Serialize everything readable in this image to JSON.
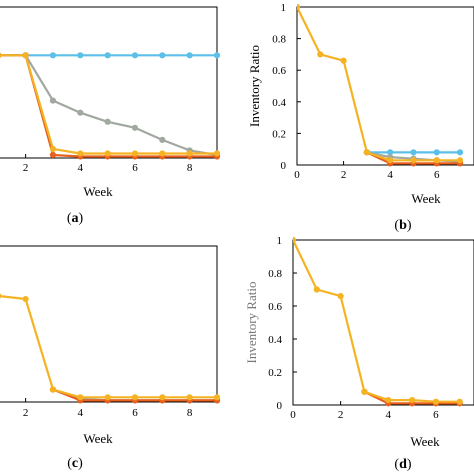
{
  "colors": {
    "blue": "#5bc0e8",
    "gray": "#a0a8a0",
    "yellow": "#f5b324",
    "orange": "#e8601c",
    "axis": "#000000"
  },
  "chart_data": [
    {
      "id": "a",
      "type": "line",
      "panel_label": {
        "open": "(",
        "letter": "a",
        "close": ")"
      },
      "xlabel": "Week",
      "ylabel": "",
      "xlim": [
        0,
        9
      ],
      "ylim": [
        0,
        1
      ],
      "xticks": [
        "2",
        "4",
        "6",
        "8"
      ],
      "xtick_values": [
        2,
        4,
        6,
        8
      ],
      "yticks": [],
      "series": [
        {
          "color": "blue",
          "x": [
            0,
            1,
            2,
            3,
            4,
            5,
            6,
            7,
            8,
            9
          ],
          "y": [
            0.68,
            0.68,
            0.68,
            0.68,
            0.68,
            0.68,
            0.68,
            0.68,
            0.68,
            0.68
          ]
        },
        {
          "color": "gray",
          "x": [
            0,
            1,
            2,
            3,
            4,
            5,
            6,
            7,
            8,
            9
          ],
          "y": [
            0.68,
            0.68,
            0.68,
            0.38,
            0.3,
            0.24,
            0.2,
            0.12,
            0.05,
            0.02
          ]
        },
        {
          "color": "orange",
          "x": [
            0,
            1,
            2,
            3,
            4,
            5,
            6,
            7,
            8,
            9
          ],
          "y": [
            0.68,
            0.68,
            0.68,
            0.02,
            0.01,
            0.01,
            0.01,
            0.01,
            0.01,
            0.01
          ]
        },
        {
          "color": "yellow",
          "x": [
            0,
            1,
            2,
            3,
            4,
            5,
            6,
            7,
            8,
            9
          ],
          "y": [
            0.68,
            0.68,
            0.68,
            0.06,
            0.03,
            0.03,
            0.03,
            0.03,
            0.03,
            0.03
          ]
        }
      ]
    },
    {
      "id": "b",
      "type": "line",
      "panel_label": {
        "open": "(",
        "letter": "b",
        "close": ")"
      },
      "xlabel": "Week",
      "ylabel": "Inventory Ratio",
      "xlim": [
        0,
        7
      ],
      "ylim": [
        0,
        1
      ],
      "xticks": [
        "0",
        "2",
        "4",
        "6"
      ],
      "xtick_values": [
        0,
        2,
        4,
        6
      ],
      "yticks": [
        "0",
        "0.2",
        "0.4",
        "0.6",
        "0.8",
        "1"
      ],
      "ytick_values": [
        0,
        0.2,
        0.4,
        0.6,
        0.8,
        1
      ],
      "series": [
        {
          "color": "blue",
          "x": [
            3,
            4,
            5,
            6,
            7
          ],
          "y": [
            0.08,
            0.08,
            0.08,
            0.08,
            0.08
          ]
        },
        {
          "color": "gray",
          "x": [
            3,
            4,
            5,
            6,
            7
          ],
          "y": [
            0.08,
            0.05,
            0.04,
            0.03,
            0.02
          ]
        },
        {
          "color": "orange",
          "x": [
            3,
            4,
            5,
            6,
            7
          ],
          "y": [
            0.08,
            0.01,
            0.01,
            0.01,
            0.01
          ]
        },
        {
          "color": "yellow",
          "x": [
            0,
            1,
            2,
            3,
            4,
            5,
            6,
            7
          ],
          "y": [
            1,
            0.7,
            0.66,
            0.08,
            0.03,
            0.03,
            0.03,
            0.03
          ]
        }
      ]
    },
    {
      "id": "c",
      "type": "line",
      "panel_label": {
        "open": "(",
        "letter": "c",
        "close": ")"
      },
      "xlabel": "Week",
      "ylabel": "",
      "xlim": [
        0,
        9
      ],
      "ylim": [
        0,
        1
      ],
      "xticks": [
        "2",
        "4",
        "6",
        "8"
      ],
      "xtick_values": [
        2,
        4,
        6,
        8
      ],
      "yticks": [],
      "series": [
        {
          "color": "gray",
          "x": [
            3,
            4,
            5,
            6,
            7,
            8,
            9
          ],
          "y": [
            0.08,
            0.02,
            0.01,
            0.01,
            0.01,
            0.01,
            0.01
          ]
        },
        {
          "color": "orange",
          "x": [
            3,
            4,
            5,
            6,
            7,
            8,
            9
          ],
          "y": [
            0.08,
            0.01,
            0.01,
            0.01,
            0.01,
            0.01,
            0.01
          ]
        },
        {
          "color": "yellow",
          "x": [
            0,
            1,
            2,
            3,
            4,
            5,
            6,
            7,
            8,
            9
          ],
          "y": [
            0.7,
            0.68,
            0.66,
            0.08,
            0.03,
            0.03,
            0.03,
            0.03,
            0.03,
            0.03
          ]
        }
      ]
    },
    {
      "id": "d",
      "type": "line",
      "panel_label": {
        "open": "(",
        "letter": "d",
        "close": ")"
      },
      "xlabel": "Week",
      "ylabel": "Inventory Ratio",
      "xlim": [
        0,
        7
      ],
      "ylim": [
        0,
        1
      ],
      "xticks": [
        "0",
        "2",
        "4",
        "6"
      ],
      "xtick_values": [
        0,
        2,
        4,
        6
      ],
      "yticks": [
        "0",
        "0.2",
        "0.4",
        "0.6",
        "0.8",
        "1"
      ],
      "ytick_values": [
        0,
        0.2,
        0.4,
        0.6,
        0.8,
        1
      ],
      "series": [
        {
          "color": "orange",
          "x": [
            3,
            4,
            5,
            6,
            7
          ],
          "y": [
            0.08,
            0.01,
            0.01,
            0.01,
            0.01
          ]
        },
        {
          "color": "yellow",
          "x": [
            0,
            1,
            2,
            3,
            4,
            5,
            6,
            7
          ],
          "y": [
            1,
            0.7,
            0.66,
            0.08,
            0.03,
            0.03,
            0.02,
            0.02
          ]
        }
      ]
    }
  ]
}
